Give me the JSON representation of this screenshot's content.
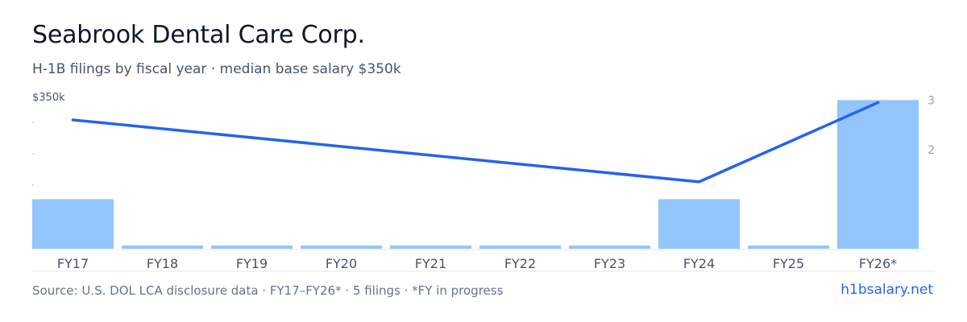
{
  "header": {
    "title": "Seabrook Dental Care Corp.",
    "subtitle": "H-1B filings by fiscal year · median base salary $350k"
  },
  "footer": {
    "source": "Source: U.S. DOL LCA disclosure data · FY17–FY26* · 5 filings · *FY in progress",
    "brand": "h1bsalary.net"
  },
  "colors": {
    "bar": "#93c5fd",
    "line": "#2563eb",
    "axis": "#e2e8f0",
    "tick_text": "#475569",
    "right_tick_text": "#94a3b8"
  },
  "chart_data": {
    "type": "bar",
    "categories": [
      "FY17",
      "FY18",
      "FY19",
      "FY20",
      "FY21",
      "FY22",
      "FY23",
      "FY24",
      "FY25",
      "FY26*"
    ],
    "series": [
      {
        "type": "bar",
        "axis": "left",
        "values": [
          1,
          0,
          0,
          0,
          0,
          0,
          0,
          1,
          0,
          3
        ]
      },
      {
        "type": "line",
        "axis": "left",
        "points": [
          {
            "x": "FY17",
            "y": 2.6
          },
          {
            "x": "FY24",
            "y": 1.35
          },
          {
            "x": "FY26*",
            "y": 2.95
          }
        ]
      }
    ],
    "left_axis": {
      "labels": [
        "$350k"
      ]
    },
    "right_axis": {
      "labels": [
        "3",
        "2"
      ],
      "ticks": [
        3,
        2
      ]
    },
    "ylim": [
      0,
      3.2
    ],
    "grid": false,
    "legend": "none"
  }
}
